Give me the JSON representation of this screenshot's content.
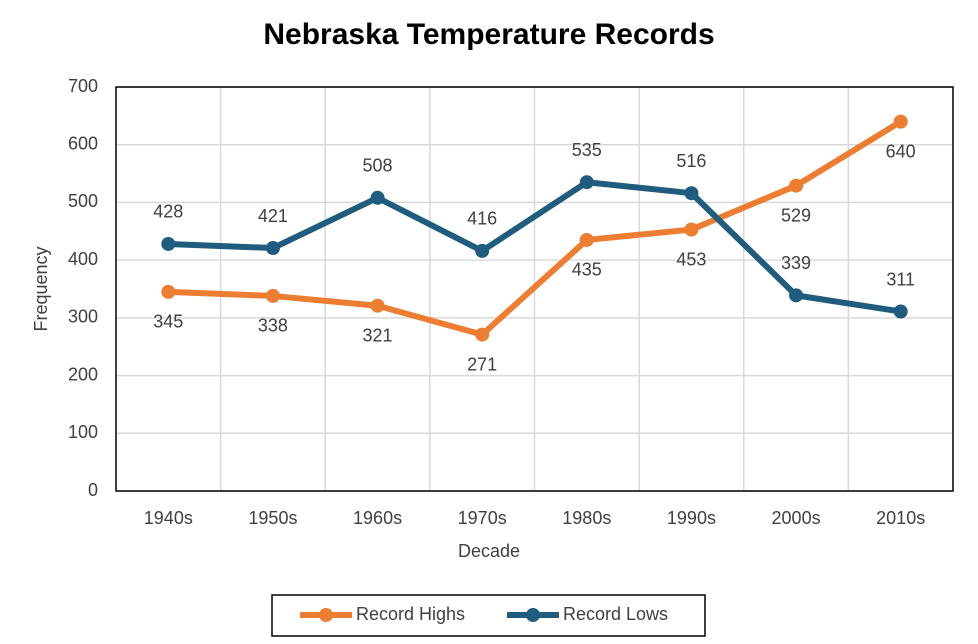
{
  "chart_data": {
    "type": "line",
    "title": "Nebraska Temperature Records",
    "xlabel": "Decade",
    "ylabel": "Frequency",
    "categories": [
      "1940s",
      "1950s",
      "1960s",
      "1970s",
      "1980s",
      "1990s",
      "2000s",
      "2010s"
    ],
    "series": [
      {
        "name": "Record Highs",
        "color": "#ed7d31",
        "values": [
          345,
          338,
          321,
          271,
          435,
          453,
          529,
          640
        ],
        "label_position": "below"
      },
      {
        "name": "Record Lows",
        "color": "#1f5c7e",
        "values": [
          428,
          421,
          508,
          416,
          535,
          516,
          339,
          311
        ],
        "label_position": "above"
      }
    ],
    "ylim": [
      0,
      700
    ],
    "yticks": [
      0,
      100,
      200,
      300,
      400,
      500,
      600,
      700
    ],
    "grid": true,
    "legend": "bottom"
  }
}
